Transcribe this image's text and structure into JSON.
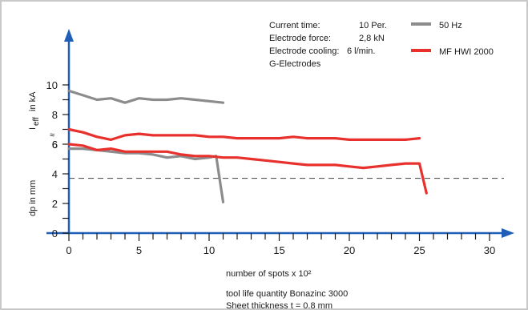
{
  "info": {
    "line1_label": "Current time:",
    "line1_value": "10 Per.",
    "line2_label": "Electrode force:",
    "line2_value": "2,8 kN",
    "line3_label": "Electrode cooling:",
    "line3_value": "6 l/min.",
    "line4": "G-Electrodes"
  },
  "footer": {
    "line1": "tool life quantity Bonazinc 3000",
    "line2": "Sheet thickness t = 0,8 mm"
  },
  "colors": {
    "series_50hz": "#8c8c8c",
    "series_mf": "#e8302c",
    "axis": "#1f5fb8"
  },
  "chart_data": {
    "type": "line",
    "xlabel": "number of spots x 10²",
    "ylabel_upper_main": "I",
    "ylabel_upper_sub": "eff",
    "ylabel_upper_unit": "in kA",
    "ylabel_lower": "dp in mm",
    "xlim": [
      0,
      30
    ],
    "ylim": [
      0,
      10
    ],
    "x_ticks": [
      0,
      5,
      10,
      15,
      20,
      25,
      30
    ],
    "y_ticks_lower": [
      0,
      2,
      4,
      6
    ],
    "y_ticks_upper": [
      6,
      8,
      10
    ],
    "axis_break_symbol": "≈",
    "reference_line_dp": 3.7,
    "series": [
      {
        "name": "50 Hz",
        "kind": "current",
        "x": [
          0,
          1,
          2,
          3,
          4,
          5,
          6,
          7,
          8,
          9,
          10,
          11
        ],
        "y": [
          9.6,
          9.3,
          9.0,
          9.1,
          8.8,
          9.1,
          9.0,
          9.0,
          9.1,
          9.0,
          8.9,
          8.8
        ]
      },
      {
        "name": "MF HWI 2000",
        "kind": "current",
        "x": [
          0,
          1,
          2,
          3,
          4,
          5,
          6,
          7,
          8,
          9,
          10,
          11,
          12,
          13,
          14,
          15,
          16,
          17,
          18,
          19,
          20,
          21,
          22,
          23,
          24,
          25
        ],
        "y": [
          7.0,
          6.8,
          6.5,
          6.3,
          6.6,
          6.7,
          6.6,
          6.6,
          6.6,
          6.6,
          6.5,
          6.5,
          6.4,
          6.4,
          6.4,
          6.4,
          6.5,
          6.4,
          6.4,
          6.4,
          6.3,
          6.3,
          6.3,
          6.3,
          6.3,
          6.4
        ]
      },
      {
        "name": "50 Hz",
        "kind": "diameter",
        "x": [
          0,
          1,
          2,
          3,
          4,
          5,
          6,
          7,
          8,
          9,
          10,
          10.5,
          11
        ],
        "y": [
          5.7,
          5.7,
          5.6,
          5.5,
          5.4,
          5.4,
          5.3,
          5.1,
          5.2,
          5.0,
          5.1,
          5.2,
          2.1
        ]
      },
      {
        "name": "MF HWI 2000",
        "kind": "diameter",
        "x": [
          0,
          1,
          2,
          3,
          4,
          5,
          6,
          7,
          8,
          9,
          10,
          11,
          12,
          13,
          14,
          15,
          16,
          17,
          18,
          19,
          20,
          21,
          22,
          23,
          24,
          25,
          25.5
        ],
        "y": [
          6.0,
          5.9,
          5.6,
          5.7,
          5.5,
          5.5,
          5.5,
          5.5,
          5.3,
          5.2,
          5.2,
          5.1,
          5.1,
          5.0,
          4.9,
          4.8,
          4.7,
          4.6,
          4.6,
          4.6,
          4.5,
          4.4,
          4.5,
          4.6,
          4.7,
          4.7,
          2.7
        ]
      }
    ]
  }
}
